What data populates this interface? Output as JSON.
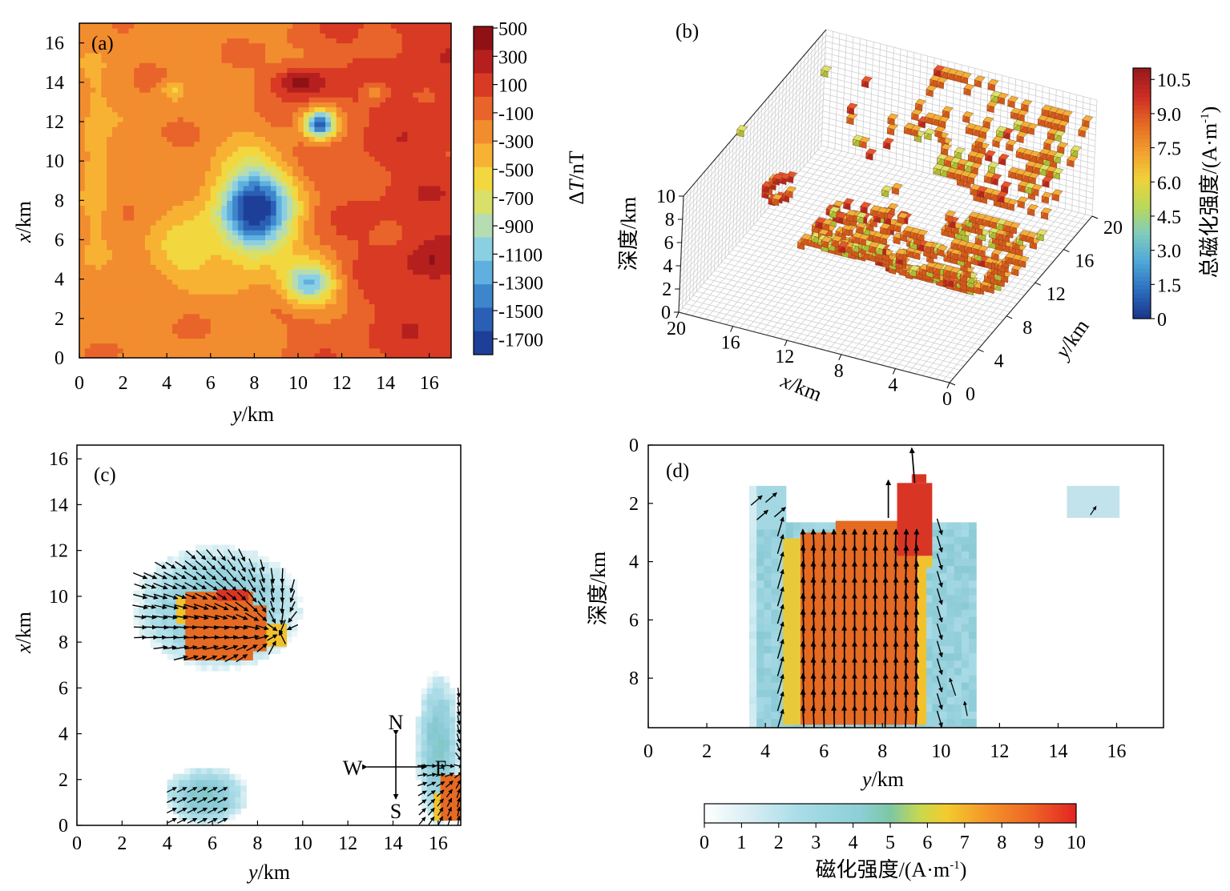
{
  "palettes": {
    "jet_dt": [
      "#1e3f97",
      "#2a5fb5",
      "#3d86cc",
      "#5fb0de",
      "#8bcfe3",
      "#b6dcb2",
      "#d8e06a",
      "#f2d73f",
      "#f8b233",
      "#f28d2f",
      "#e9642a",
      "#d93a24",
      "#b5201f",
      "#8f1116"
    ],
    "magnet": [
      "#ffffff",
      "#d4edf2",
      "#b2e0ea",
      "#9bd3df",
      "#88c9d4",
      "#7cc9b4",
      "#b3d66b",
      "#f1cd2d",
      "#f7a329",
      "#f07727",
      "#eb4f24",
      "#e12822"
    ],
    "block_main": "#e56a23",
    "block_high": "#d93525",
    "block_top": "#f2b03a",
    "block_green": "#c8d94a",
    "grid_line": "#cfcfcf",
    "arrow": "#000000"
  },
  "chart_data": [
    {
      "panel": "a",
      "type": "heatmap",
      "label": "(a)",
      "xlabel_italic": "y",
      "xlabel_unit": "/km",
      "ylabel_italic": "x",
      "ylabel_unit": "/km",
      "xlim": [
        0,
        17
      ],
      "ylim": [
        0,
        17
      ],
      "xticks": [
        "0",
        "2",
        "4",
        "6",
        "8",
        "10",
        "12",
        "14",
        "16"
      ],
      "yticks": [
        "0",
        "2",
        "4",
        "6",
        "8",
        "10",
        "12",
        "14",
        "16"
      ],
      "colorbar": {
        "title_prefix": "Δ",
        "title_italic": "T",
        "title_unit": "/nT",
        "ticks": [
          "500",
          "300",
          "100",
          "-100",
          "-300",
          "-500",
          "-700",
          "-900",
          "-1100",
          "-1300",
          "-1500",
          "-1700"
        ],
        "range": [
          -1800,
          500
        ]
      },
      "anomalies": [
        {
          "y": 8.0,
          "x": 7.5,
          "value": -1800,
          "sy": 1.7,
          "sx": 2.2
        },
        {
          "y": 10.5,
          "x": 3.8,
          "value": -1150,
          "sy": 1.2,
          "sx": 1.1
        },
        {
          "y": 4.8,
          "x": 5.5,
          "value": -600,
          "sy": 1.6,
          "sx": 1.8
        },
        {
          "y": 11.0,
          "x": 11.9,
          "value": -1600,
          "sy": 0.7,
          "sx": 0.7
        },
        {
          "y": 10.2,
          "x": 14.0,
          "value": 480,
          "sy": 1.3,
          "sx": 0.8
        },
        {
          "y": 13.5,
          "x": 13.5,
          "value": -300,
          "sy": 0.5,
          "sx": 0.5
        },
        {
          "y": 16.2,
          "x": 5.0,
          "value": 420,
          "sy": 1.2,
          "sx": 1.0
        },
        {
          "y": 4.3,
          "x": 13.6,
          "value": -500,
          "sy": 0.5,
          "sx": 0.5
        },
        {
          "y": 0.8,
          "x": 10.0,
          "value": -350,
          "sy": 0.9,
          "sx": 6.0
        }
      ]
    },
    {
      "panel": "b",
      "type": "3d-voxel",
      "label": "(b)",
      "xlabel_italic": "x",
      "xlabel_unit": "/km",
      "ylabel_italic": "y",
      "ylabel_unit": "/km",
      "zlabel": "深度/km",
      "xticks": [
        "20",
        "16",
        "12",
        "8",
        "4",
        "0"
      ],
      "yticks": [
        "0",
        "4",
        "8",
        "12",
        "16",
        "20"
      ],
      "zticks": [
        "0",
        "2",
        "4",
        "6",
        "8",
        "10"
      ],
      "colorbar": {
        "title": "总磁化强度/(A·m",
        "title_sup": "-1",
        "title_end": ")",
        "ticks": [
          "10.5",
          "9.0",
          "7.5",
          "6.0",
          "4.5",
          "3.0",
          "1.5",
          "0"
        ],
        "range": [
          0,
          11
        ]
      }
    },
    {
      "panel": "c",
      "type": "heatmap-vector",
      "label": "(c)",
      "xlabel_italic": "y",
      "xlabel_unit": "/km",
      "ylabel_italic": "x",
      "ylabel_unit": "/km",
      "xlim": [
        0,
        17
      ],
      "ylim": [
        0,
        16.6
      ],
      "xticks": [
        "0",
        "2",
        "4",
        "6",
        "8",
        "10",
        "12",
        "14",
        "16"
      ],
      "yticks": [
        "0",
        "2",
        "4",
        "6",
        "8",
        "10",
        "12",
        "14",
        "16"
      ],
      "compass": {
        "N": "N",
        "S": "S",
        "W": "W",
        "E": "F"
      },
      "bodies": [
        {
          "y0": 4.8,
          "y1": 9.3,
          "x0": 7.4,
          "x1": 10.2,
          "value": 9.5
        },
        {
          "y0": 16.1,
          "y1": 17.0,
          "x0": 0.2,
          "x1": 2.2,
          "value": 9.5
        }
      ],
      "halos": [
        {
          "y0": 2.5,
          "y1": 10.0,
          "x0": 6.8,
          "x1": 12.2
        },
        {
          "y0": 3.8,
          "y1": 7.6,
          "x0": 0.0,
          "x1": 2.6
        },
        {
          "y0": 15.0,
          "y1": 17.0,
          "x0": 0.0,
          "x1": 6.8
        }
      ]
    },
    {
      "panel": "d",
      "type": "heatmap-vector",
      "label": "(d)",
      "xlabel_italic": "y",
      "xlabel_unit": "/km",
      "ylabel": "深度/km",
      "xlim": [
        0,
        17.6
      ],
      "ylim": [
        0,
        9.7
      ],
      "xticks": [
        "0",
        "2",
        "4",
        "6",
        "8",
        "10",
        "12",
        "14",
        "16"
      ],
      "yticks": [
        "0",
        "2",
        "4",
        "6",
        "8"
      ],
      "colorbar": {
        "title": "磁化强度/(A·m",
        "title_sup": "-1",
        "title_end": ")",
        "ticks": [
          "0",
          "1",
          "2",
          "3",
          "4",
          "5",
          "6",
          "7",
          "8",
          "9",
          "10"
        ],
        "range": [
          0,
          10
        ]
      }
    }
  ]
}
